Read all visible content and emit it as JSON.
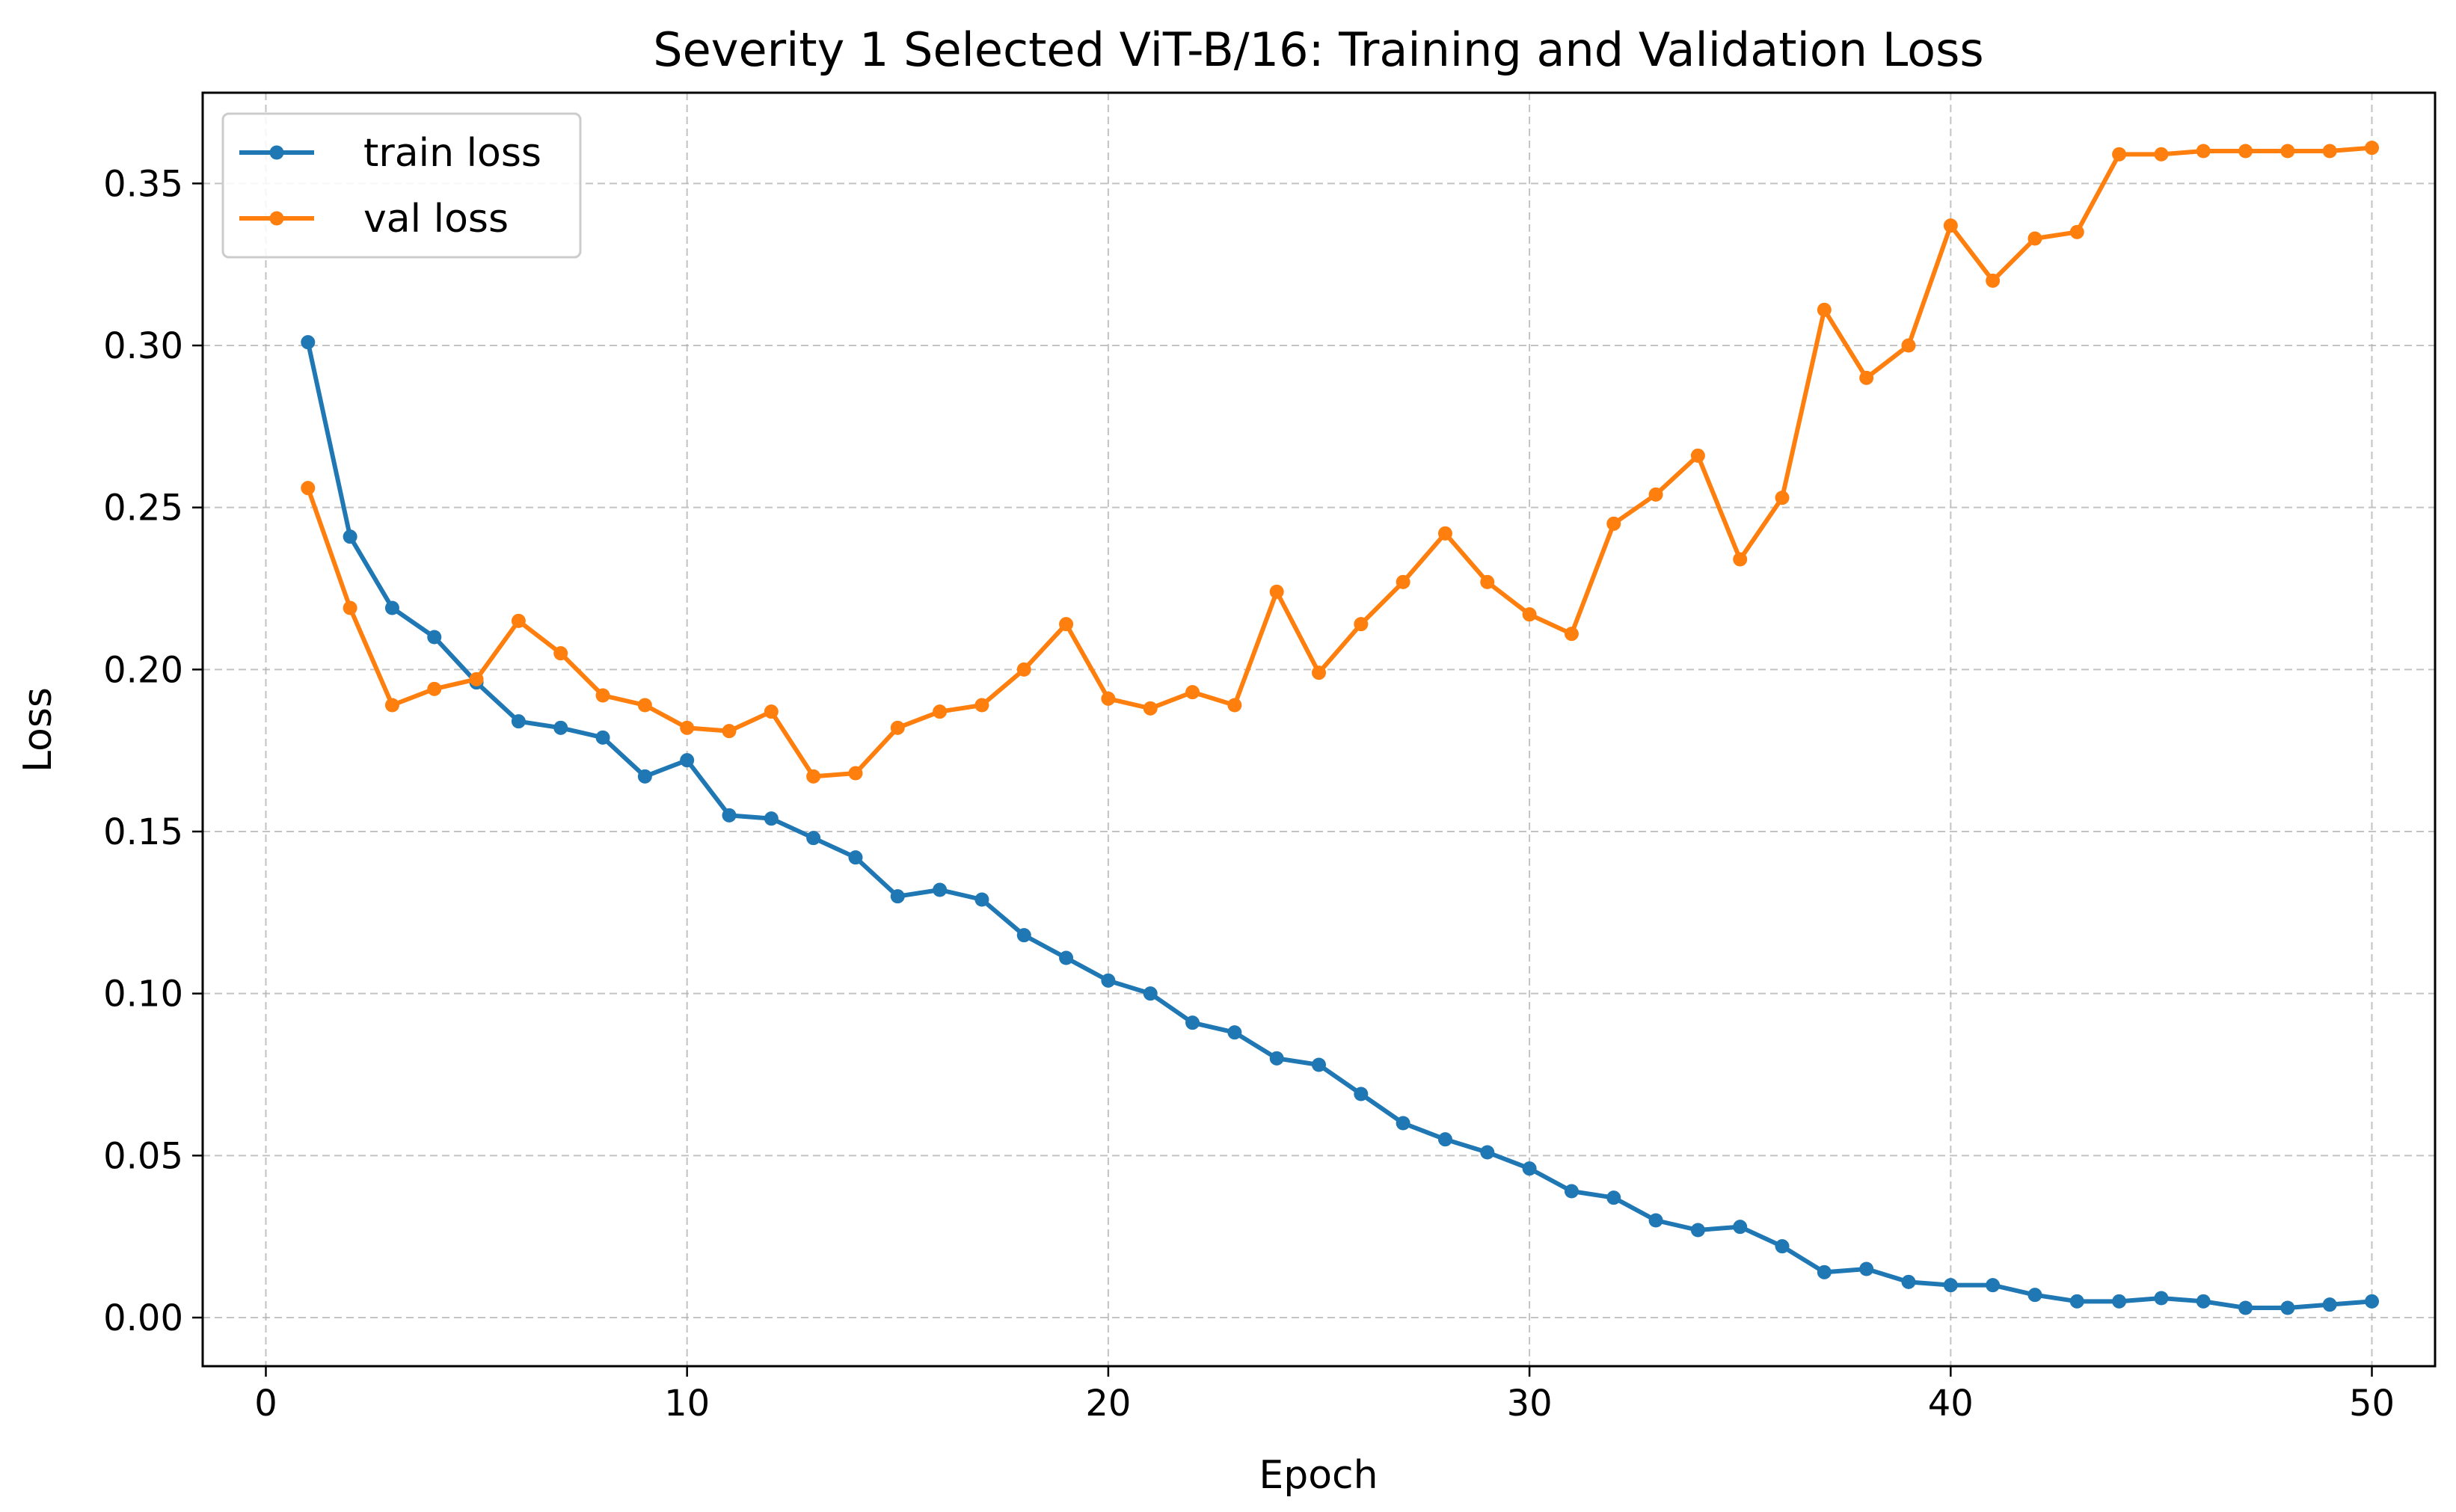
{
  "chart_data": {
    "type": "line",
    "title": "Severity 1 Selected ViT-B/16: Training and Validation Loss",
    "xlabel": "Epoch",
    "ylabel": "Loss",
    "xlim": [
      -1.5,
      51.5
    ],
    "ylim": [
      -0.015,
      0.378
    ],
    "xticks": [
      0,
      10,
      20,
      30,
      40,
      50
    ],
    "yticks": [
      0.0,
      0.05,
      0.1,
      0.15,
      0.2,
      0.25,
      0.3,
      0.35
    ],
    "ytick_labels": [
      "0.00",
      "0.05",
      "0.10",
      "0.15",
      "0.20",
      "0.25",
      "0.30",
      "0.35"
    ],
    "grid": true,
    "legend_position": "upper-left",
    "x": [
      1,
      2,
      3,
      4,
      5,
      6,
      7,
      8,
      9,
      10,
      11,
      12,
      13,
      14,
      15,
      16,
      17,
      18,
      19,
      20,
      21,
      22,
      23,
      24,
      25,
      26,
      27,
      28,
      29,
      30,
      31,
      32,
      33,
      34,
      35,
      36,
      37,
      38,
      39,
      40,
      41,
      42,
      43,
      44,
      45,
      46,
      47,
      48,
      49,
      50
    ],
    "series": [
      {
        "name": "train loss",
        "color": "#1f77b4",
        "values": [
          0.301,
          0.241,
          0.219,
          0.21,
          0.196,
          0.184,
          0.182,
          0.179,
          0.167,
          0.172,
          0.155,
          0.154,
          0.148,
          0.142,
          0.13,
          0.132,
          0.129,
          0.118,
          0.111,
          0.104,
          0.1,
          0.091,
          0.088,
          0.08,
          0.078,
          0.069,
          0.06,
          0.055,
          0.051,
          0.046,
          0.039,
          0.037,
          0.03,
          0.027,
          0.028,
          0.022,
          0.014,
          0.015,
          0.011,
          0.01,
          0.01,
          0.007,
          0.005,
          0.005,
          0.006,
          0.005,
          0.003,
          0.003,
          0.004,
          0.005
        ]
      },
      {
        "name": "val loss",
        "color": "#ff7f0e",
        "values": [
          0.256,
          0.219,
          0.189,
          0.194,
          0.197,
          0.215,
          0.205,
          0.192,
          0.189,
          0.182,
          0.181,
          0.187,
          0.167,
          0.168,
          0.182,
          0.187,
          0.189,
          0.2,
          0.214,
          0.191,
          0.188,
          0.193,
          0.189,
          0.224,
          0.199,
          0.214,
          0.227,
          0.242,
          0.227,
          0.217,
          0.211,
          0.245,
          0.254,
          0.266,
          0.234,
          0.253,
          0.311,
          0.29,
          0.3,
          0.337,
          0.32,
          0.333,
          0.335,
          0.359,
          0.359,
          0.36,
          0.36,
          0.36,
          0.36,
          0.361
        ]
      }
    ]
  }
}
